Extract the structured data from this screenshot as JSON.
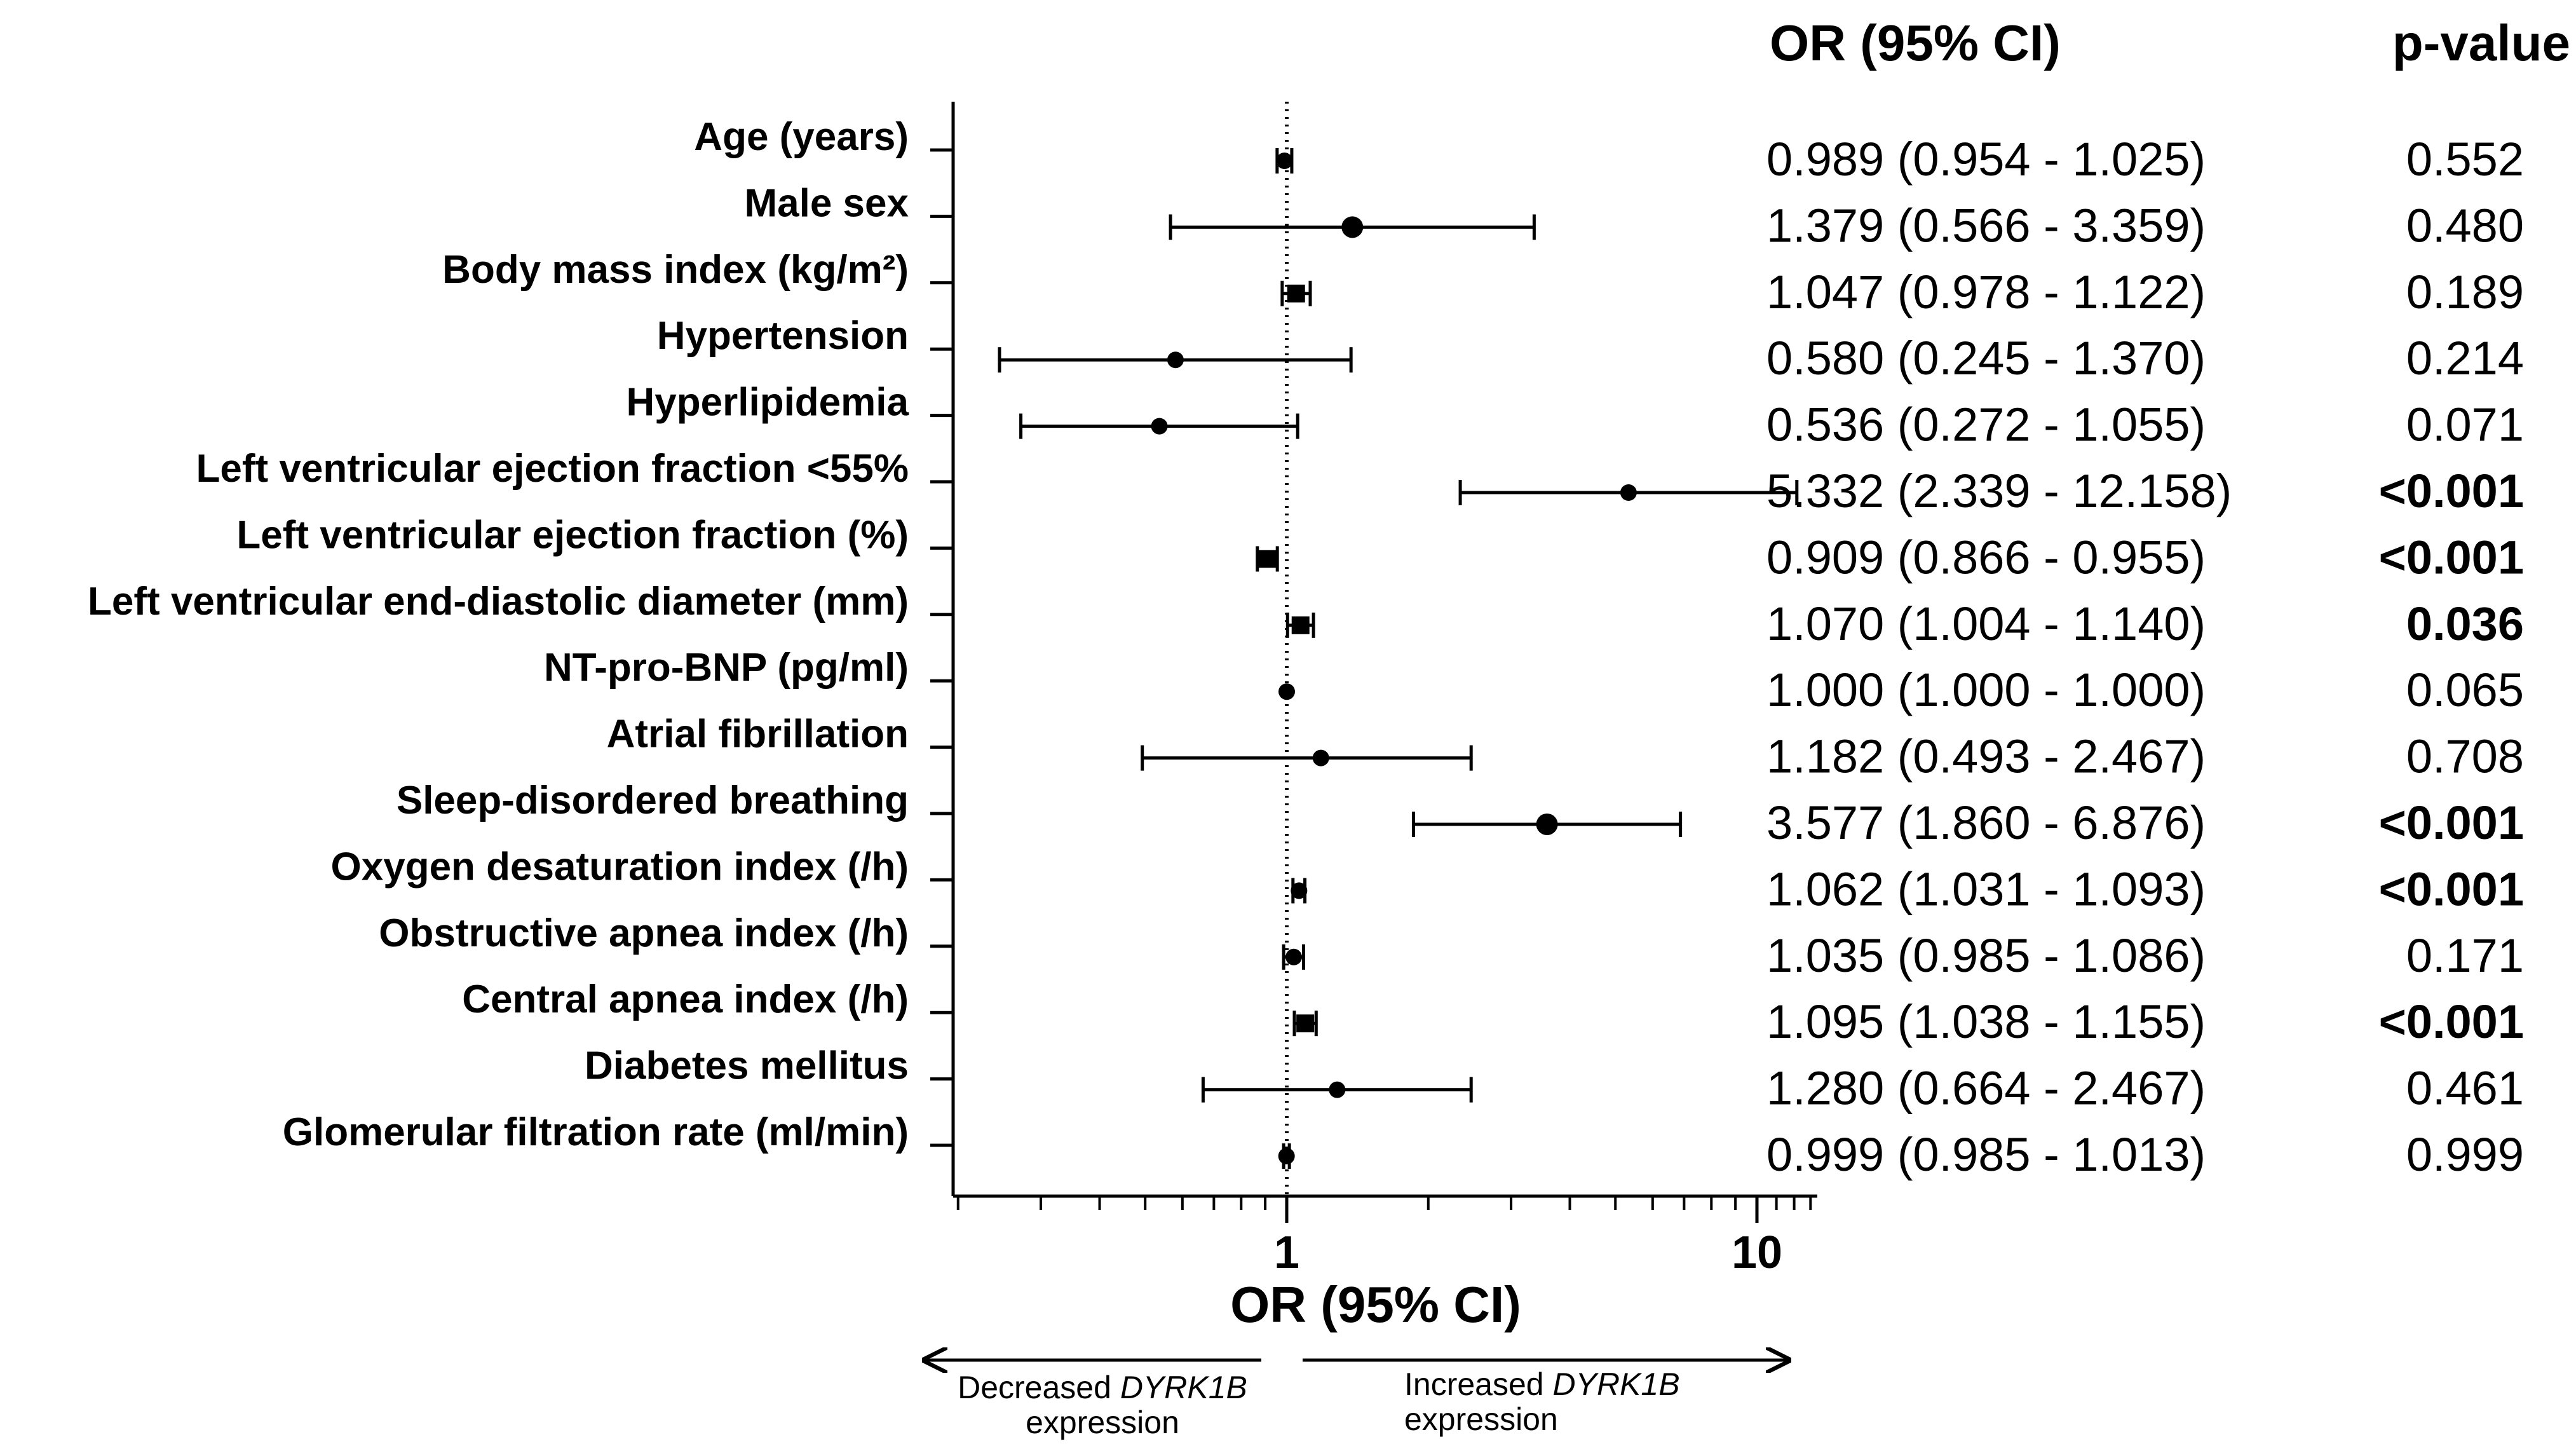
{
  "chart_data": {
    "type": "forest",
    "xscale": "log",
    "xlim": [
      0.19,
      14
    ],
    "reference_line": 1,
    "xticks": [
      {
        "value": 1,
        "label": "1"
      },
      {
        "value": 10,
        "label": "10"
      }
    ],
    "xlabel": "OR (95% CI)",
    "column_headers": {
      "or_ci": "OR (95% CI)",
      "p_value": "p-value"
    },
    "direction_labels": {
      "left_prefix": "Decreased ",
      "left_gene": "DYRK1B",
      "left_suffix": "expression",
      "right_prefix": "Increased ",
      "right_gene": "DYRK1B",
      "right_suffix": "expression"
    },
    "rows": [
      {
        "label": "Age (years)",
        "or": 0.989,
        "lo": 0.954,
        "hi": 1.025,
        "or_text": "0.989 (0.954 - 1.025)",
        "p": "0.552",
        "significant": false,
        "marker": "circle",
        "size": "small"
      },
      {
        "label": "Male sex",
        "or": 1.379,
        "lo": 0.566,
        "hi": 3.359,
        "or_text": "1.379 (0.566 - 3.359)",
        "p": "0.480",
        "significant": false,
        "marker": "circle",
        "size": "large"
      },
      {
        "label": "Body mass index (kg/m²)",
        "or": 1.047,
        "lo": 0.978,
        "hi": 1.122,
        "or_text": "1.047 (0.978 - 1.122)",
        "p": "0.189",
        "significant": false,
        "marker": "square",
        "size": "small"
      },
      {
        "label": "Hypertension",
        "or": 0.58,
        "lo": 0.245,
        "hi": 1.37,
        "or_text": "0.580 (0.245 - 1.370)",
        "p": "0.214",
        "significant": false,
        "marker": "circle",
        "size": "small"
      },
      {
        "label": "Hyperlipidemia",
        "or": 0.536,
        "lo": 0.272,
        "hi": 1.055,
        "or_text": "0.536 (0.272 - 1.055)",
        "p": "0.071",
        "significant": false,
        "marker": "circle",
        "size": "small"
      },
      {
        "label": "Left ventricular ejection fraction <55%",
        "or": 5.332,
        "lo": 2.339,
        "hi": 12.158,
        "or_text": "5.332 (2.339 - 12.158)",
        "p": "<0.001",
        "significant": true,
        "marker": "circle",
        "size": "small"
      },
      {
        "label": "Left ventricular ejection fraction (%)",
        "or": 0.909,
        "lo": 0.866,
        "hi": 0.955,
        "or_text": "0.909 (0.866 - 0.955)",
        "p": "<0.001",
        "significant": true,
        "marker": "square",
        "size": "small"
      },
      {
        "label": "Left ventricular end-diastolic diameter (mm)",
        "or": 1.07,
        "lo": 1.004,
        "hi": 1.14,
        "or_text": "1.070 (1.004 - 1.140)",
        "p": "0.036",
        "significant": true,
        "marker": "square",
        "size": "small"
      },
      {
        "label": "NT-pro-BNP (pg/ml)",
        "or": 1.0,
        "lo": 1.0,
        "hi": 1.0,
        "or_text": "1.000 (1.000 - 1.000)",
        "p": "0.065",
        "significant": false,
        "marker": "circle",
        "size": "small"
      },
      {
        "label": "Atrial fibrillation",
        "or": 1.182,
        "lo": 0.493,
        "hi": 2.467,
        "or_text": "1.182 (0.493 - 2.467)",
        "p": "0.708",
        "significant": false,
        "marker": "circle",
        "size": "small"
      },
      {
        "label": "Sleep-disordered breathing",
        "or": 3.577,
        "lo": 1.86,
        "hi": 6.876,
        "or_text": "3.577 (1.860 - 6.876)",
        "p": "<0.001",
        "significant": true,
        "marker": "circle",
        "size": "large"
      },
      {
        "label": "Oxygen desaturation index (/h)",
        "or": 1.062,
        "lo": 1.031,
        "hi": 1.093,
        "or_text": "1.062 (1.031 - 1.093)",
        "p": "<0.001",
        "significant": true,
        "marker": "circle",
        "size": "small"
      },
      {
        "label": "Obstructive apnea index (/h)",
        "or": 1.035,
        "lo": 0.985,
        "hi": 1.086,
        "or_text": "1.035 (0.985 - 1.086)",
        "p": "0.171",
        "significant": false,
        "marker": "circle",
        "size": "small"
      },
      {
        "label": "Central apnea index (/h)",
        "or": 1.095,
        "lo": 1.038,
        "hi": 1.155,
        "or_text": "1.095 (1.038 - 1.155)",
        "p": "<0.001",
        "significant": true,
        "marker": "square",
        "size": "small"
      },
      {
        "label": "Diabetes mellitus",
        "or": 1.28,
        "lo": 0.664,
        "hi": 2.467,
        "or_text": "1.280 (0.664 - 2.467)",
        "p": "0.461",
        "significant": false,
        "marker": "circle",
        "size": "small"
      },
      {
        "label": "Glomerular filtration rate (ml/min)",
        "or": 0.999,
        "lo": 0.985,
        "hi": 1.013,
        "or_text": "0.999 (0.985 - 1.013)",
        "p": "0.999",
        "significant": false,
        "marker": "circle",
        "size": "small"
      }
    ]
  }
}
